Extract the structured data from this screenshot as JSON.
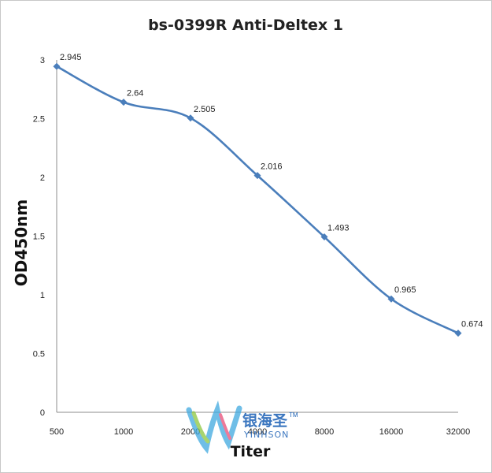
{
  "chart_data": {
    "type": "line",
    "title": "bs-0399R Anti-Deltex 1",
    "xlabel": "Titer",
    "ylabel": "OD450nm",
    "categories": [
      "500",
      "1000",
      "2000",
      "4000",
      "8000",
      "16000",
      "32000"
    ],
    "series": [
      {
        "values": [
          2.945,
          2.64,
          2.505,
          2.016,
          1.493,
          0.965,
          0.674
        ]
      }
    ],
    "data_labels": [
      "2.945",
      "2.64",
      "2.505",
      "2.016",
      "1.493",
      "0.965",
      "0.674"
    ],
    "yticks": [
      "0",
      "0.5",
      "1",
      "1.5",
      "2",
      "2.5",
      "3"
    ],
    "ylim": [
      0,
      3
    ],
    "grid": false,
    "line_color": "#4a7ebb"
  },
  "watermark": {
    "chinese": "银海圣",
    "tm": "TM",
    "english": "YINHSON"
  }
}
